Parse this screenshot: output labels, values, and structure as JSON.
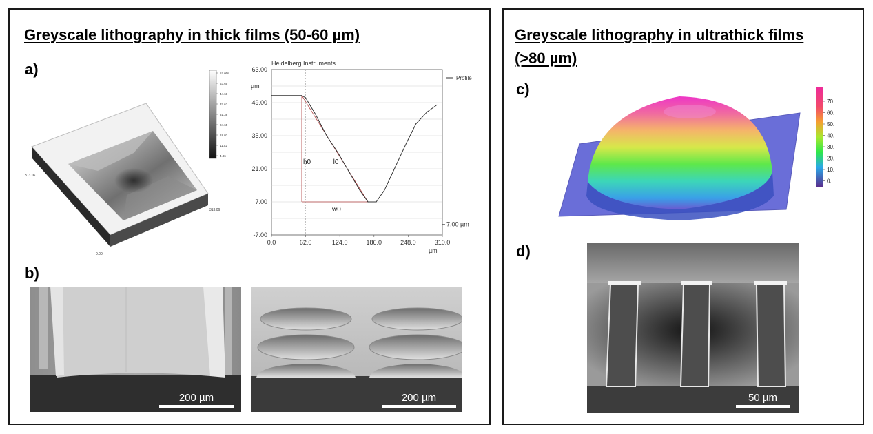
{
  "left": {
    "title": "Greyscale lithography in thick films (50-60 µm)",
    "label_a": "a)",
    "label_b": "b)",
    "colorbar_ticks": [
      "57.63",
      "53.65",
      "44.68",
      "37.63",
      "31.38",
      "24.65",
      "18.03",
      "11.52",
      "4.86"
    ],
    "colorbar_unit": "µm",
    "corner_labels": [
      "313.06",
      "313.06",
      "0.00"
    ],
    "profile": {
      "header": "Heidelberg Instruments",
      "legend": "Profile",
      "unit_label": "µm",
      "x_unit": "µm",
      "y_ticks": [
        "63.00",
        "49.00",
        "35.00",
        "21.00",
        "7.00",
        "-7.00"
      ],
      "x_ticks": [
        "0.0",
        "62.0",
        "124.0",
        "186.0",
        "248.0",
        "310.0"
      ],
      "annotations": {
        "h0": "h0",
        "l0": "l0",
        "w0": "w0"
      },
      "right_marker": "7.00 µm"
    },
    "sem1_scale": "200 µm",
    "sem2_scale": "200 µm"
  },
  "right": {
    "title_line1": "Greyscale lithography in ultrathick films",
    "title_line2": "(>80 µm)",
    "label_c": "c)",
    "label_d": "d)",
    "colorbar_ticks": [
      "70.",
      "60.",
      "50.",
      "40.",
      "30.",
      "20.",
      "10.",
      "0."
    ],
    "sem_scale": "50 µm"
  },
  "chart_data": {
    "type": "line",
    "title": "Heidelberg Instruments",
    "xlabel": "µm",
    "ylabel": "µm",
    "xlim": [
      0,
      310
    ],
    "ylim": [
      -7,
      63
    ],
    "series": [
      {
        "name": "Profile",
        "x": [
          0,
          55,
          62,
          80,
          100,
          120,
          140,
          160,
          175,
          190,
          205,
          225,
          245,
          262,
          282,
          300
        ],
        "y": [
          52.0,
          52.0,
          51.0,
          44.0,
          35.0,
          28.0,
          20.0,
          12.0,
          7.0,
          7.0,
          12.0,
          22.0,
          32.0,
          40.0,
          45.0,
          48.0
        ]
      }
    ]
  }
}
